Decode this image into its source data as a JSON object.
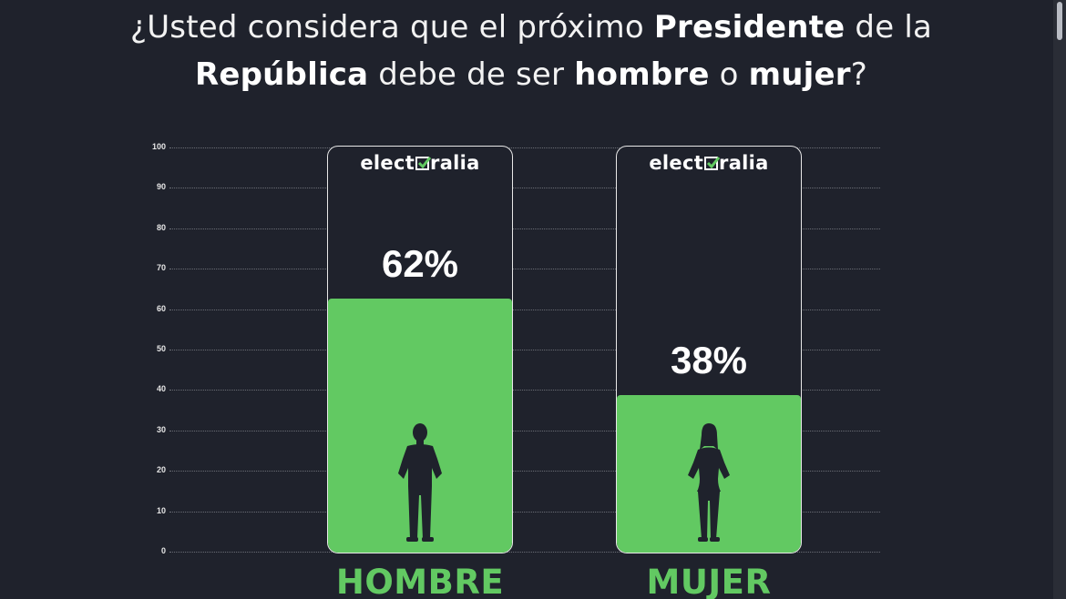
{
  "title": {
    "parts": [
      {
        "text": "¿Usted considera que el próximo ",
        "bold": false
      },
      {
        "text": "Presidente",
        "bold": true
      },
      {
        "text": " de la",
        "bold": false
      },
      {
        "break": true
      },
      {
        "text": "República",
        "bold": true
      },
      {
        "text": " debe de ser ",
        "bold": false
      },
      {
        "text": "hombre",
        "bold": true
      },
      {
        "text": " o ",
        "bold": false
      },
      {
        "text": "mujer",
        "bold": true
      },
      {
        "text": "?",
        "bold": false
      }
    ]
  },
  "brand": {
    "name_before": "elect",
    "name_after": "ralia",
    "check_icon": "checkbox-check-icon",
    "check_color": "#62c962"
  },
  "colors": {
    "background": "#1f222c",
    "bar": "#62c962",
    "figure": "#1f222c",
    "text": "#ffffff"
  },
  "chart_data": {
    "type": "bar",
    "categories": [
      "HOMBRE",
      "MUJER"
    ],
    "values": [
      62,
      38
    ],
    "value_labels": [
      "62%",
      "38%"
    ],
    "icons": [
      "man-silhouette-icon",
      "woman-silhouette-icon"
    ],
    "ylim": [
      0,
      100
    ],
    "yticks": [
      "0",
      "10",
      "20",
      "30",
      "40",
      "50",
      "60",
      "70",
      "80",
      "90",
      "100"
    ],
    "grid": true,
    "title": "¿Usted considera que el próximo Presidente de la República debe de ser hombre o mujer?",
    "xlabel": "",
    "ylabel": ""
  }
}
